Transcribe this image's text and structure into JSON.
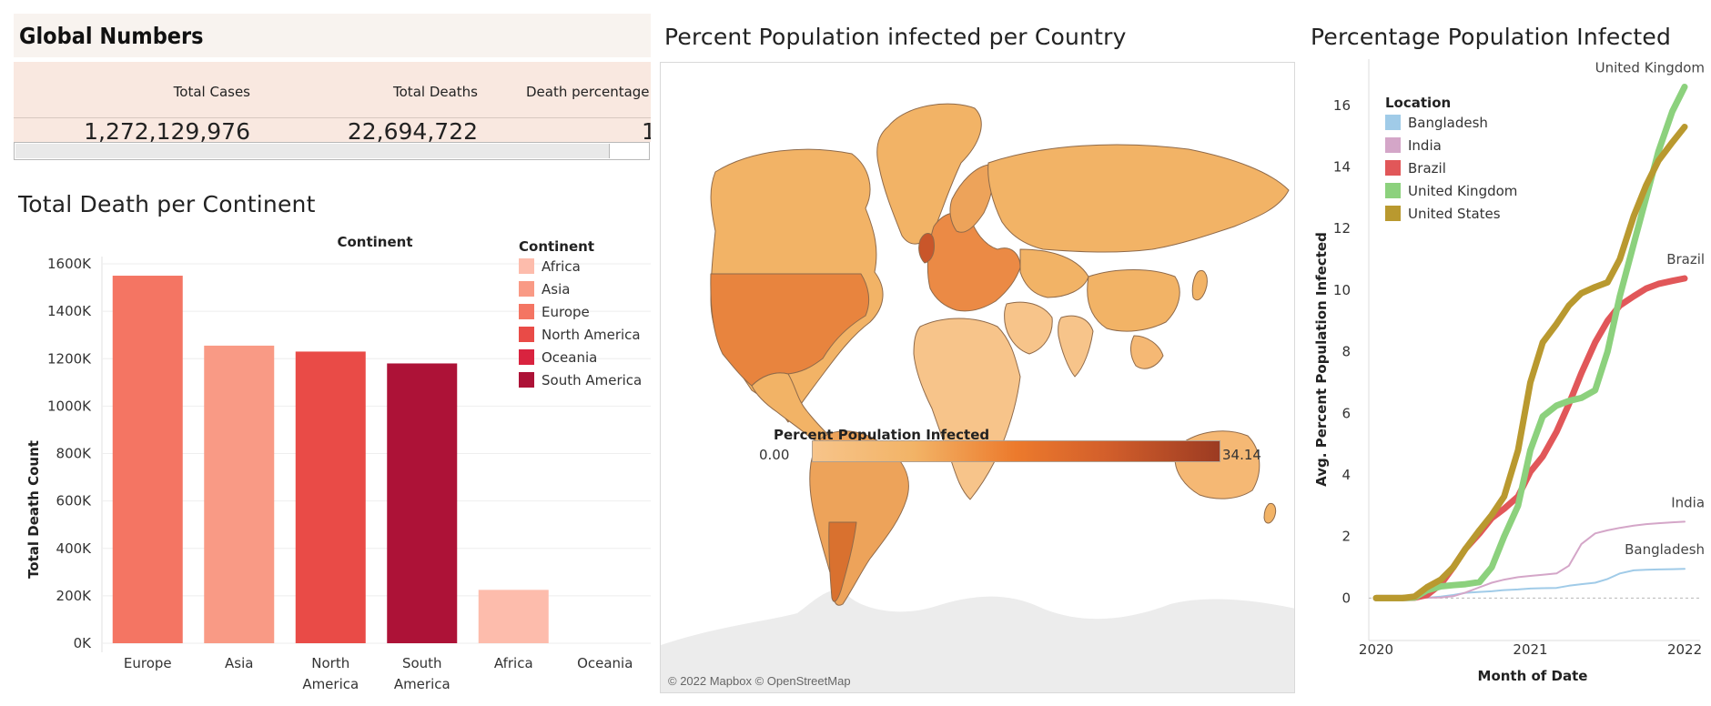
{
  "global_numbers": {
    "title": "Global Numbers",
    "columns": [
      "Total Cases",
      "Total Deaths",
      "Death percentage"
    ],
    "values": [
      "1,272,129,976",
      "22,694,722",
      "1"
    ]
  },
  "map": {
    "title": "Percent Population infected per Country",
    "legend_title": "Percent Population Infected",
    "legend_min": "0.00",
    "legend_max": "34.14",
    "attribution": "© 2022 Mapbox © OpenStreetMap",
    "colors": {
      "low": "#f7c48a",
      "mid": "#f08a3a",
      "high": "#9c3b22",
      "land": "#f2b366",
      "ocean": "#ffffff",
      "antarctica": "#ececec"
    }
  },
  "chart_data": [
    {
      "type": "bar",
      "title": "Total Death per Continent",
      "header": "Continent",
      "xlabel": "",
      "ylabel": "Total Death Count",
      "categories": [
        "Europe",
        "Asia",
        "North America",
        "South America",
        "Africa",
        "Oceania"
      ],
      "category_lines": [
        [
          "Europe"
        ],
        [
          "Asia"
        ],
        [
          "North",
          "America"
        ],
        [
          "South",
          "America"
        ],
        [
          "Africa"
        ],
        [
          "Oceania"
        ]
      ],
      "values": [
        1550000,
        1255000,
        1230000,
        1180000,
        225000,
        0
      ],
      "colors": [
        "#f47563",
        "#f99a85",
        "#e94b47",
        "#ad1237",
        "#fdbcac",
        "#d9233f"
      ],
      "ylim": [
        0,
        1600000
      ],
      "yticks": [
        0,
        200000,
        400000,
        600000,
        800000,
        1000000,
        1200000,
        1400000,
        1600000
      ],
      "ytick_labels": [
        "0K",
        "200K",
        "400K",
        "600K",
        "800K",
        "1000K",
        "1200K",
        "1400K",
        "1600K"
      ],
      "legend": {
        "title": "Continent",
        "position": "top-right",
        "items": [
          {
            "label": "Africa",
            "color": "#fdbcac"
          },
          {
            "label": "Asia",
            "color": "#f99a85"
          },
          {
            "label": "Europe",
            "color": "#f47563"
          },
          {
            "label": "North America",
            "color": "#e94b47"
          },
          {
            "label": "Oceania",
            "color": "#d9233f"
          },
          {
            "label": "South America",
            "color": "#ad1237"
          }
        ]
      }
    },
    {
      "type": "line",
      "title": "Percentage Population Infected",
      "xlabel": "Month of Date",
      "ylabel": "Avg. Percent Population Infected",
      "xlim": [
        2020,
        2022.1
      ],
      "xticks": [
        2020,
        2021,
        2022
      ],
      "xtick_labels": [
        "2020",
        "2021",
        "2022"
      ],
      "ylim": [
        -1.2,
        17.5
      ],
      "yticks": [
        0,
        2,
        4,
        6,
        8,
        10,
        12,
        14,
        16
      ],
      "ytick_labels": [
        "0",
        "2",
        "4",
        "6",
        "8",
        "10",
        "12",
        "14",
        "16"
      ],
      "legend": {
        "title": "Location",
        "position": "top-left"
      },
      "series": [
        {
          "name": "Bangladesh",
          "color": "#a0cbe8",
          "width": 2,
          "x": [
            2020,
            2020.17,
            2020.25,
            2020.33,
            2020.42,
            2020.5,
            2020.58,
            2020.67,
            2020.75,
            2020.83,
            2020.92,
            2021,
            2021.08,
            2021.17,
            2021.25,
            2021.33,
            2021.42,
            2021.5,
            2021.58,
            2021.67,
            2021.75,
            2021.83,
            2021.92,
            2022
          ],
          "values": [
            0,
            0,
            0,
            0.01,
            0.05,
            0.1,
            0.17,
            0.2,
            0.22,
            0.26,
            0.28,
            0.31,
            0.32,
            0.33,
            0.4,
            0.45,
            0.5,
            0.62,
            0.8,
            0.9,
            0.92,
            0.93,
            0.94,
            0.95
          ],
          "end_label": "Bangladesh"
        },
        {
          "name": "India",
          "color": "#d4a6c8",
          "width": 2,
          "x": [
            2020,
            2020.17,
            2020.25,
            2020.33,
            2020.42,
            2020.5,
            2020.58,
            2020.67,
            2020.75,
            2020.83,
            2020.92,
            2021,
            2021.08,
            2021.17,
            2021.25,
            2021.33,
            2021.42,
            2021.5,
            2021.58,
            2021.67,
            2021.75,
            2021.83,
            2021.92,
            2022
          ],
          "values": [
            0,
            0,
            0,
            0.01,
            0.02,
            0.06,
            0.18,
            0.35,
            0.5,
            0.6,
            0.68,
            0.72,
            0.76,
            0.8,
            1.05,
            1.75,
            2.1,
            2.2,
            2.28,
            2.35,
            2.4,
            2.43,
            2.46,
            2.48
          ],
          "end_label": "India"
        },
        {
          "name": "Brazil",
          "color": "#e15759",
          "width": 7,
          "x": [
            2020,
            2020.17,
            2020.25,
            2020.33,
            2020.42,
            2020.5,
            2020.58,
            2020.67,
            2020.75,
            2020.83,
            2020.92,
            2021,
            2021.08,
            2021.17,
            2021.25,
            2021.33,
            2021.42,
            2021.5,
            2021.58,
            2021.67,
            2021.75,
            2021.83,
            2021.92,
            2022
          ],
          "values": [
            0,
            0,
            0.01,
            0.1,
            0.45,
            1.0,
            1.6,
            2.1,
            2.6,
            2.9,
            3.3,
            4.1,
            4.6,
            5.4,
            6.3,
            7.3,
            8.3,
            9.0,
            9.5,
            9.8,
            10.05,
            10.2,
            10.3,
            10.38
          ],
          "end_label": "Brazil"
        },
        {
          "name": "United Kingdom",
          "color": "#8cd17d",
          "width": 7,
          "x": [
            2020,
            2020.17,
            2020.25,
            2020.33,
            2020.42,
            2020.5,
            2020.58,
            2020.67,
            2020.75,
            2020.83,
            2020.92,
            2021,
            2021.08,
            2021.17,
            2021.25,
            2021.33,
            2021.42,
            2021.5,
            2021.58,
            2021.67,
            2021.75,
            2021.83,
            2021.92,
            2022
          ],
          "values": [
            0,
            0,
            0.02,
            0.25,
            0.38,
            0.42,
            0.45,
            0.52,
            1.0,
            2.0,
            3.0,
            4.8,
            5.9,
            6.25,
            6.4,
            6.5,
            6.75,
            8.0,
            9.8,
            11.5,
            13.0,
            14.5,
            15.8,
            16.6
          ],
          "end_label": "United Kingdom"
        },
        {
          "name": "United States",
          "color": "#b9992f",
          "width": 7,
          "x": [
            2020,
            2020.17,
            2020.25,
            2020.33,
            2020.42,
            2020.5,
            2020.58,
            2020.67,
            2020.75,
            2020.83,
            2020.92,
            2021,
            2021.08,
            2021.17,
            2021.25,
            2021.33,
            2021.42,
            2021.5,
            2021.58,
            2021.67,
            2021.75,
            2021.83,
            2021.92,
            2022
          ],
          "values": [
            0,
            0,
            0.05,
            0.35,
            0.6,
            1.0,
            1.6,
            2.2,
            2.7,
            3.3,
            4.8,
            7.0,
            8.3,
            8.9,
            9.5,
            9.9,
            10.1,
            10.25,
            11.0,
            12.4,
            13.4,
            14.2,
            14.8,
            15.3
          ]
        }
      ]
    }
  ]
}
